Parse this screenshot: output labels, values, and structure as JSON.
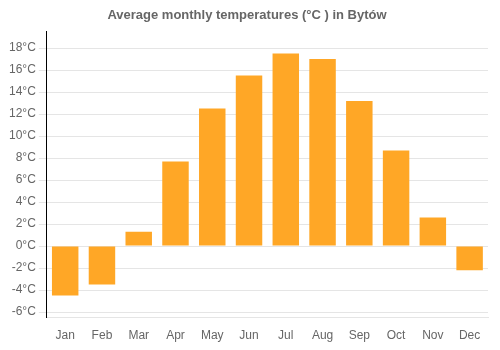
{
  "chart_data": {
    "type": "bar",
    "title": "Average monthly temperatures (°C ) in Bytów",
    "categories": [
      "Jan",
      "Feb",
      "Mar",
      "Apr",
      "May",
      "Jun",
      "Jul",
      "Aug",
      "Sep",
      "Oct",
      "Nov",
      "Dec"
    ],
    "values": [
      -4.5,
      -3.5,
      1.3,
      7.7,
      12.5,
      15.5,
      17.5,
      17.0,
      13.2,
      8.7,
      2.6,
      -2.2
    ],
    "color": "#FFA726",
    "ylim": [
      -6.5,
      19.5
    ],
    "yticks": [
      {
        "value": -6,
        "label": "-6°C"
      },
      {
        "value": -4,
        "label": "-4°C"
      },
      {
        "value": -2,
        "label": "-2°C"
      },
      {
        "value": 0,
        "label": "0°C"
      },
      {
        "value": 2,
        "label": "2°C"
      },
      {
        "value": 4,
        "label": "4°C"
      },
      {
        "value": 6,
        "label": "6°C"
      },
      {
        "value": 8,
        "label": "8°C"
      },
      {
        "value": 10,
        "label": "10°C"
      },
      {
        "value": 12,
        "label": "12°C"
      },
      {
        "value": 14,
        "label": "14°C"
      },
      {
        "value": 16,
        "label": "16°C"
      },
      {
        "value": 18,
        "label": "18°C"
      }
    ],
    "grid": true
  }
}
